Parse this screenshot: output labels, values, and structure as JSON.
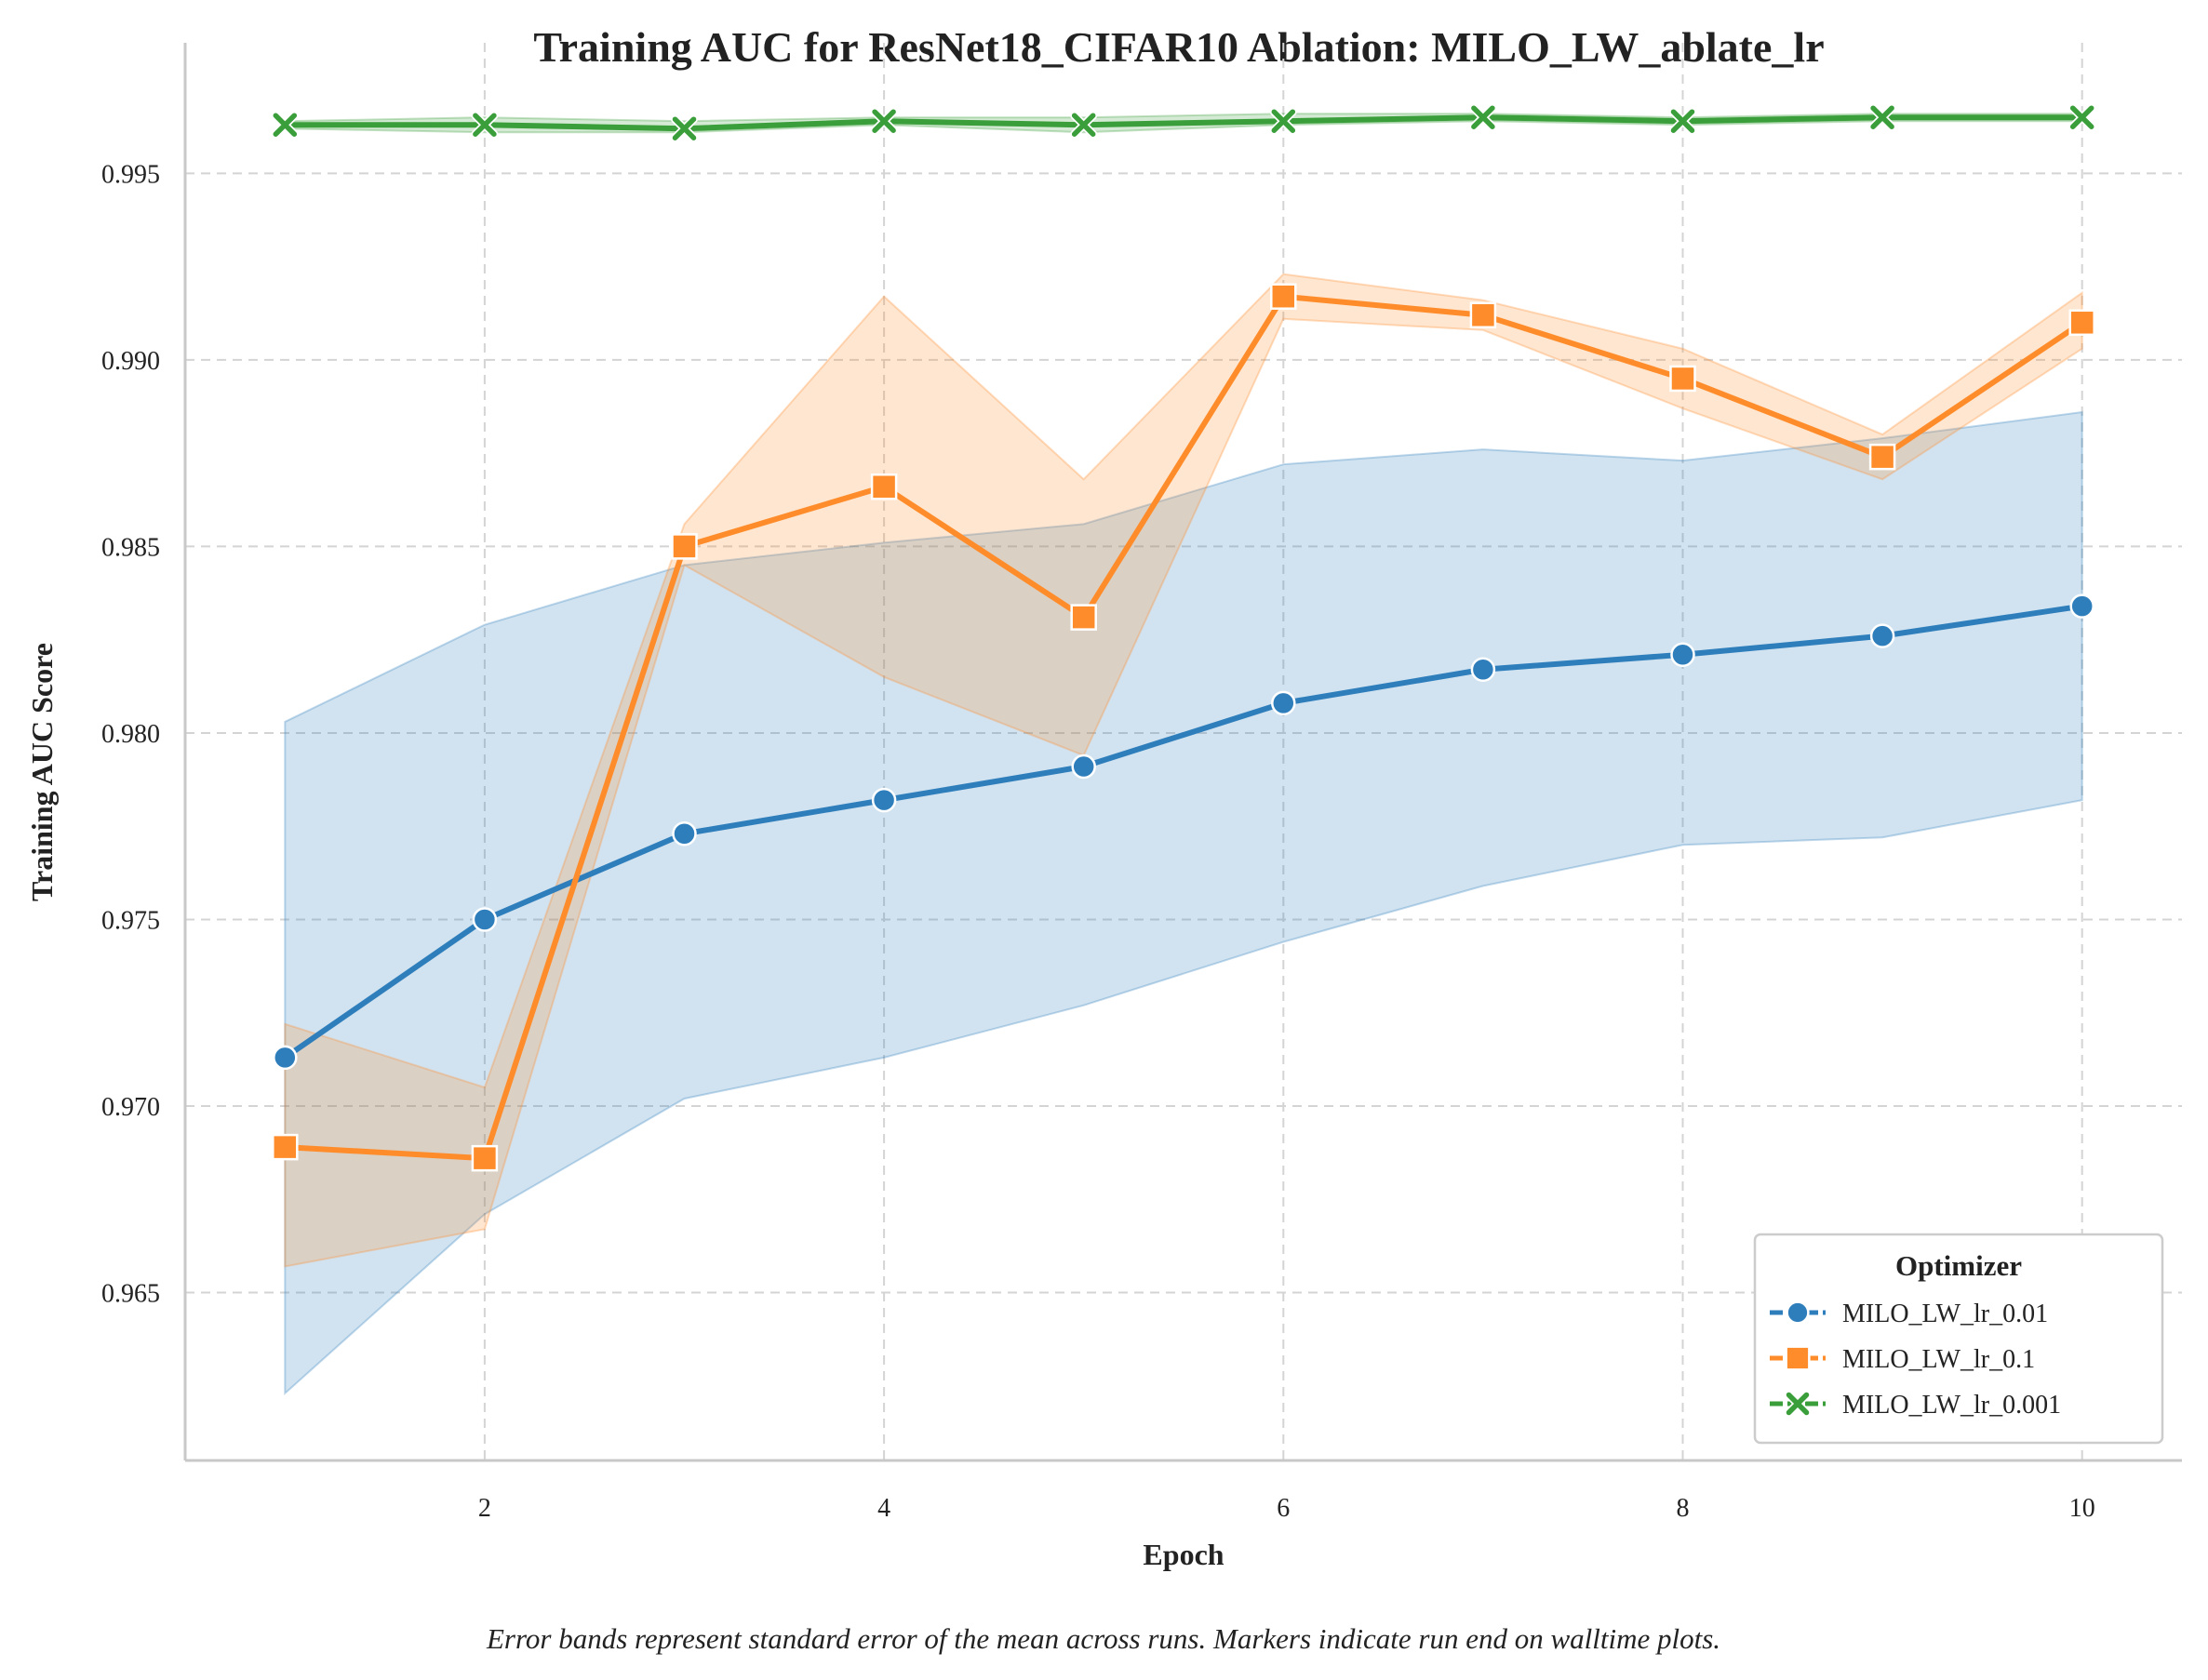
{
  "chart_data": {
    "type": "line",
    "title": "Training AUC for ResNet18_CIFAR10 Ablation: MILO_LW_ablate_lr",
    "xlabel": "Epoch",
    "ylabel": "Training AUC Score",
    "x": [
      1,
      2,
      3,
      4,
      5,
      6,
      7,
      8,
      9,
      10
    ],
    "xlim": [
      0.5,
      10.5
    ],
    "ylim": [
      0.9605,
      0.9985
    ],
    "xticks": [
      2,
      4,
      6,
      8,
      10
    ],
    "yticks": [
      0.965,
      0.97,
      0.975,
      0.98,
      0.985,
      0.99,
      0.995
    ],
    "xtick_labels": [
      "2",
      "4",
      "6",
      "8",
      "10"
    ],
    "ytick_labels": [
      "0.965",
      "0.970",
      "0.975",
      "0.980",
      "0.985",
      "0.990",
      "0.995"
    ],
    "grid": true,
    "legend": {
      "title": "Optimizer",
      "placement": "lower-right"
    },
    "series": [
      {
        "name": "MILO_LW_lr_0.01",
        "color": "#2f7ebc",
        "marker": "circle",
        "values": [
          0.9713,
          0.975,
          0.9773,
          0.9782,
          0.9791,
          0.9808,
          0.9817,
          0.9821,
          0.9826,
          0.9834
        ],
        "lower": [
          0.9623,
          0.9671,
          0.9702,
          0.9713,
          0.9727,
          0.9744,
          0.9759,
          0.977,
          0.9772,
          0.9782
        ],
        "upper": [
          0.9803,
          0.9829,
          0.9845,
          0.9851,
          0.9856,
          0.9872,
          0.9876,
          0.9873,
          0.9879,
          0.9886
        ]
      },
      {
        "name": "MILO_LW_lr_0.1",
        "color": "#ff8c2a",
        "marker": "square",
        "values": [
          0.9689,
          0.9686,
          0.985,
          0.9866,
          0.9831,
          0.9917,
          0.9912,
          0.9895,
          0.9874,
          0.991
        ],
        "lower": [
          0.9657,
          0.9667,
          0.9845,
          0.9815,
          0.9794,
          0.9911,
          0.9908,
          0.9887,
          0.9868,
          0.9903
        ],
        "upper": [
          0.9722,
          0.9705,
          0.9856,
          0.9917,
          0.9868,
          0.9923,
          0.9916,
          0.9903,
          0.988,
          0.9918
        ]
      },
      {
        "name": "MILO_LW_lr_0.001",
        "color": "#3a9e3a",
        "marker": "x",
        "values": [
          0.9963,
          0.9963,
          0.9962,
          0.9964,
          0.9963,
          0.9964,
          0.9965,
          0.9964,
          0.9965,
          0.9965
        ],
        "lower": [
          0.9962,
          0.9961,
          0.9961,
          0.9963,
          0.9961,
          0.9963,
          0.9964,
          0.9963,
          0.9964,
          0.9964
        ],
        "upper": [
          0.9964,
          0.9965,
          0.9964,
          0.9965,
          0.9965,
          0.9966,
          0.9966,
          0.9965,
          0.9966,
          0.9966
        ]
      }
    ]
  },
  "caption": "Error bands represent standard error of the mean across runs. Markers indicate run end on walltime plots."
}
